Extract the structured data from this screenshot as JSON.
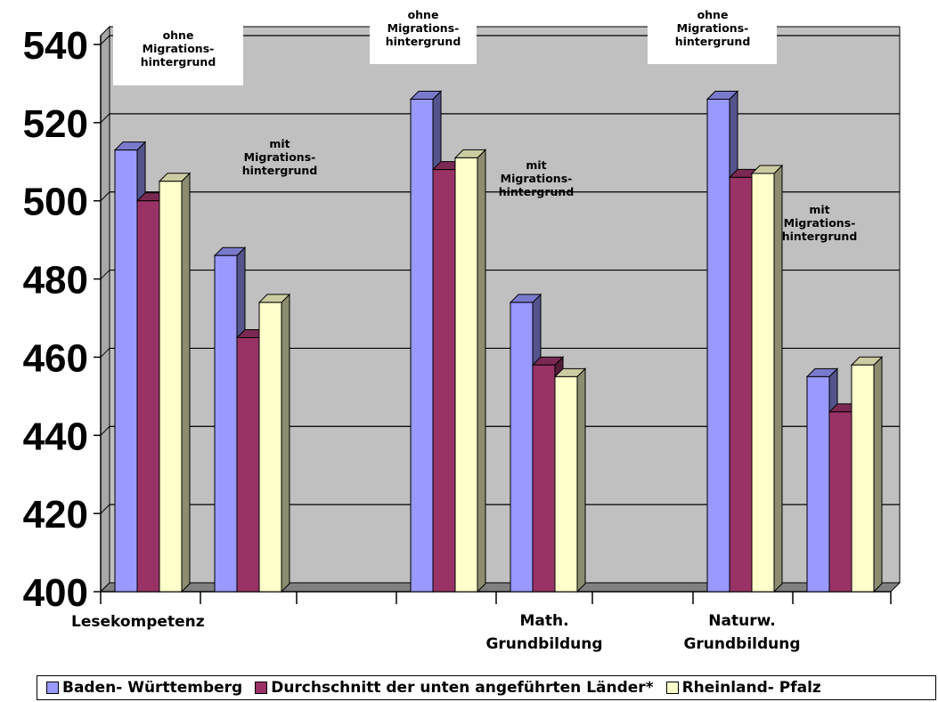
{
  "chart_data": {
    "type": "bar",
    "subtype": "3d-clustered",
    "ylim": [
      400,
      540
    ],
    "yticks": [
      400,
      420,
      440,
      460,
      480,
      500,
      520,
      540
    ],
    "grid": true,
    "legend_position": "bottom",
    "categories": [
      "Lesekompetenz",
      "Lesekompetenz",
      "Math. Grundbildung",
      "Math. Grundbildung",
      "Naturw. Grundbildung",
      "Naturw. Grundbildung"
    ],
    "subgroups": [
      "ohne Migrations-hintergrund",
      "mit Migrations-hintergrund",
      "ohne Migrations-hintergrund",
      "mit Migrations-hintergrund",
      "ohne Migrations-hintergrund",
      "mit Migrations-hintergrund"
    ],
    "series": [
      {
        "name": "Baden- Württemberg",
        "color": "#9999FF",
        "values": [
          513,
          486,
          526,
          474,
          526,
          455
        ]
      },
      {
        "name": "Durchschnitt der unten angeführten Länder*",
        "color": "#993366",
        "values": [
          500,
          465,
          508,
          458,
          506,
          446
        ]
      },
      {
        "name": "Rheinland- Pfalz",
        "color": "#FFFFCC",
        "values": [
          505,
          474,
          511,
          455,
          507,
          458
        ]
      }
    ],
    "category_labels": [
      {
        "lines": [
          "Lesekompetenz"
        ]
      },
      {
        "lines": [
          "Math.",
          "Grundbildung"
        ]
      },
      {
        "lines": [
          "Naturw.",
          "Grundbildung"
        ]
      }
    ],
    "annotations": [
      {
        "lines": [
          "ohne",
          "Migrations-",
          "hintergrund"
        ]
      },
      {
        "lines": [
          "mit",
          "Migrations-",
          "hintergrund"
        ]
      },
      {
        "lines": [
          "ohne",
          "Migrations-",
          "hintergrund"
        ]
      },
      {
        "lines": [
          "mit",
          "Migrations-",
          "hintergrund"
        ]
      },
      {
        "lines": [
          "ohne",
          "Migrations-",
          "hintergrund"
        ]
      },
      {
        "lines": [
          "mit",
          "Migrations-",
          "hintergrund"
        ]
      }
    ],
    "plot_background": "#C0C0C0"
  }
}
